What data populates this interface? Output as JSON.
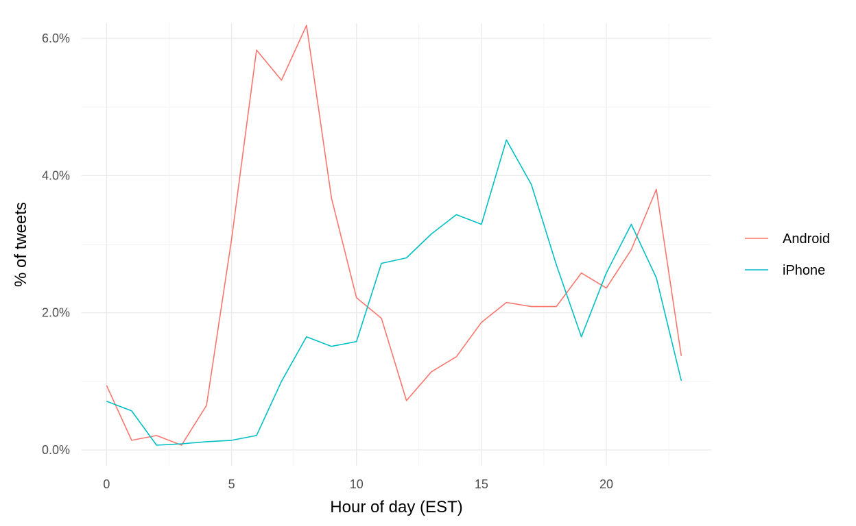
{
  "chart_data": {
    "type": "line",
    "title": "",
    "xlabel": "Hour of day (EST)",
    "ylabel": "% of tweets",
    "x": [
      0,
      1,
      2,
      3,
      4,
      5,
      6,
      7,
      8,
      9,
      10,
      11,
      12,
      13,
      14,
      15,
      16,
      17,
      18,
      19,
      20,
      21,
      22,
      23
    ],
    "xlim": [
      -1,
      24.2
    ],
    "ylim": [
      -0.0023,
      0.0622
    ],
    "x_ticks": [
      0,
      5,
      10,
      15,
      20
    ],
    "x_tick_labels": [
      "0",
      "5",
      "10",
      "15",
      "20"
    ],
    "y_ticks": [
      0,
      0.02,
      0.04,
      0.06
    ],
    "y_tick_labels": [
      "0.0%",
      "2.0%",
      "4.0%",
      "6.0%"
    ],
    "grid": true,
    "legend_position": "right",
    "series": [
      {
        "name": "Android",
        "color": "#F8766D",
        "values": [
          0.0094,
          0.0014,
          0.0021,
          0.0007,
          0.0065,
          0.0307,
          0.0583,
          0.0539,
          0.0619,
          0.0367,
          0.0222,
          0.0192,
          0.0072,
          0.0114,
          0.0136,
          0.0186,
          0.0215,
          0.0209,
          0.0209,
          0.0258,
          0.0236,
          0.0292,
          0.038,
          0.0137
        ]
      },
      {
        "name": "iPhone",
        "color": "#00BFC4",
        "values": [
          0.0071,
          0.0057,
          0.0007,
          0.0009,
          0.0012,
          0.0014,
          0.0021,
          0.01,
          0.0165,
          0.0151,
          0.0158,
          0.0272,
          0.028,
          0.0315,
          0.0343,
          0.0329,
          0.0452,
          0.0387,
          0.027,
          0.0165,
          0.0258,
          0.0329,
          0.0251,
          0.0101
        ]
      }
    ]
  }
}
